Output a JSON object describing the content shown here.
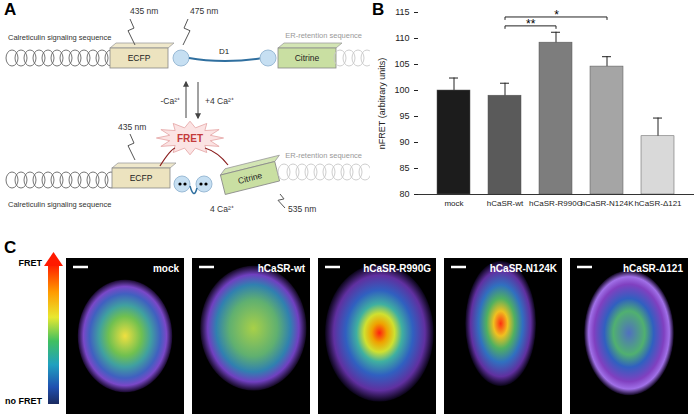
{
  "panel_labels": [
    "A",
    "B",
    "C"
  ],
  "panel_a": {
    "top": {
      "signal": "Calreticulin signaling sequence",
      "excitation": "435 nm",
      "emission": "475 nm",
      "donor": "ECFP",
      "domain": "D1",
      "acceptor": "Citrine",
      "retention": "ER-retention sequence"
    },
    "transition": {
      "release": "-Ca²⁺",
      "binding": "+4 Ca²⁺"
    },
    "bottom": {
      "signal": "Calreticulin signaling sequence",
      "excitation": "435 nm",
      "fret": "FRET",
      "emission": "535 nm",
      "calcium": "4 Ca²⁺",
      "donor": "ECFP",
      "acceptor": "Citrine",
      "retention": "ER-retention sequence"
    }
  },
  "chart_data": {
    "type": "bar",
    "categories": [
      "mock",
      "hCaSR-wt",
      "hCaSR-R990G",
      "hCaSR-N124K",
      "hCaSR-Δ121"
    ],
    "values": [
      100,
      99,
      109.2,
      104.6,
      91.2
    ],
    "errors": [
      2.4,
      2.4,
      2.0,
      1.9,
      3.5
    ],
    "colors": [
      "#1c1c1c",
      "#5a5a5a",
      "#7d7d7d",
      "#a5a5a5",
      "#d9d9d9"
    ],
    "y_label": "nFRET (arbitrary units)",
    "ylim": [
      80,
      115
    ],
    "yticks": [
      80,
      85,
      90,
      95,
      100,
      105,
      110,
      115
    ],
    "grid": false,
    "annotations": [
      {
        "between": [
          "hCaSR-wt",
          "hCaSR-R990G"
        ],
        "label": "**"
      },
      {
        "between": [
          "hCaSR-wt",
          "hCaSR-N124K"
        ],
        "label": "*"
      }
    ]
  },
  "panel_c": {
    "scale_top": "FRET",
    "scale_bottom": "no FRET",
    "images": [
      "mock",
      "hCaSR-wt",
      "hCaSR-R990G",
      "hCaSR-N124K",
      "hCaSR-Δ121"
    ]
  }
}
